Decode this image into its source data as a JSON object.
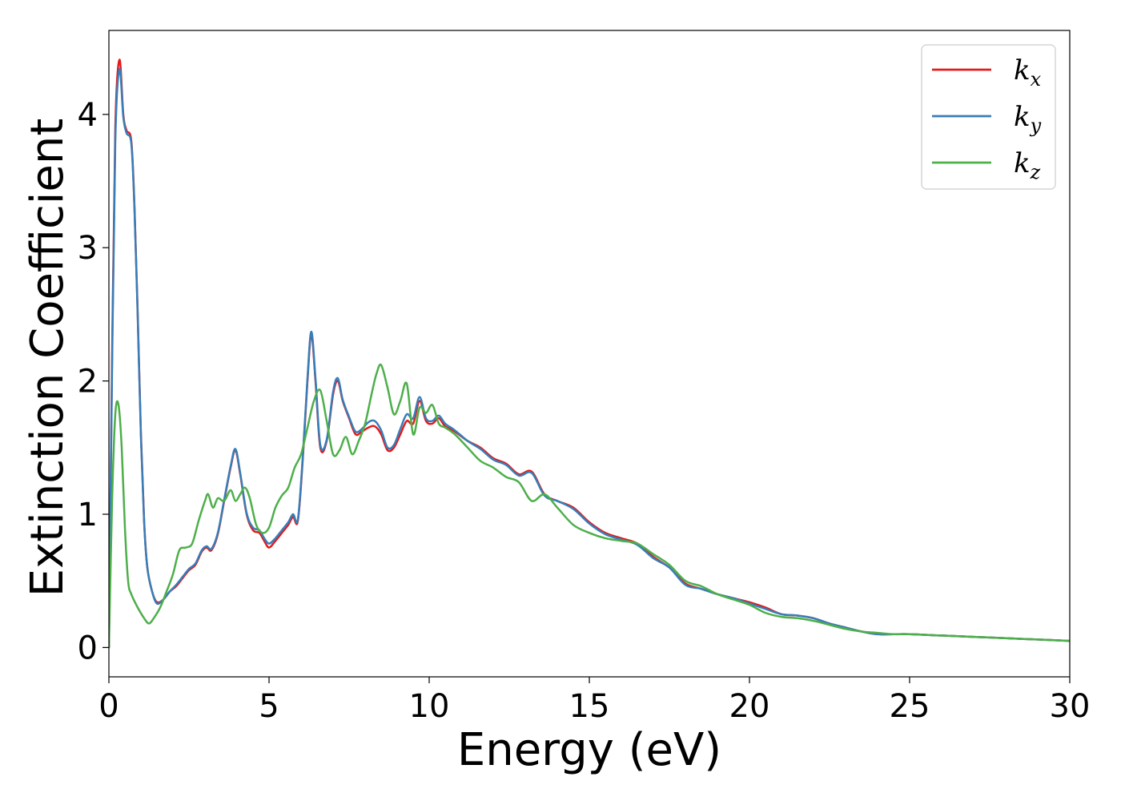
{
  "chart_data": {
    "type": "line",
    "title": "",
    "xlabel": "Energy (eV)",
    "ylabel": "Extinction Coefficient",
    "xlim": [
      0,
      30
    ],
    "ylim": [
      -0.22,
      4.63
    ],
    "xticks": [
      0,
      5,
      10,
      15,
      20,
      25,
      30
    ],
    "yticks": [
      0,
      1,
      2,
      3,
      4
    ],
    "grid": false,
    "legend": {
      "position": "top-right"
    },
    "series": [
      {
        "name": "k",
        "sub": "x",
        "color": "#e41a1c",
        "x": [
          0,
          0.1,
          0.2,
          0.33,
          0.45,
          0.55,
          0.7,
          0.8,
          0.9,
          1.0,
          1.1,
          1.2,
          1.35,
          1.5,
          1.7,
          1.9,
          2.1,
          2.3,
          2.5,
          2.7,
          2.9,
          3.05,
          3.2,
          3.4,
          3.6,
          3.8,
          3.95,
          4.1,
          4.3,
          4.5,
          4.7,
          4.85,
          5.0,
          5.2,
          5.4,
          5.6,
          5.75,
          5.9,
          6.05,
          6.2,
          6.32,
          6.45,
          6.6,
          6.8,
          7.0,
          7.15,
          7.3,
          7.5,
          7.7,
          7.9,
          8.1,
          8.3,
          8.5,
          8.7,
          8.9,
          9.1,
          9.3,
          9.5,
          9.7,
          9.9,
          10.1,
          10.3,
          10.5,
          10.8,
          11.2,
          11.6,
          12.0,
          12.4,
          12.8,
          13.2,
          13.6,
          14.0,
          14.5,
          15.0,
          15.5,
          16.0,
          16.5,
          17.0,
          17.5,
          18.0,
          18.5,
          19.0,
          19.5,
          20.0,
          20.5,
          21.0,
          21.5,
          22.0,
          22.5,
          23.0,
          23.5,
          24.0,
          24.5,
          25.0,
          26.0,
          27.0,
          28.0,
          29.0,
          30.0
        ],
        "y": [
          0.0,
          2.2,
          3.9,
          4.41,
          4.0,
          3.88,
          3.8,
          3.3,
          2.5,
          1.6,
          0.95,
          0.6,
          0.42,
          0.34,
          0.36,
          0.42,
          0.46,
          0.52,
          0.58,
          0.62,
          0.72,
          0.75,
          0.73,
          0.85,
          1.1,
          1.35,
          1.48,
          1.3,
          1.0,
          0.88,
          0.86,
          0.8,
          0.75,
          0.8,
          0.86,
          0.92,
          0.98,
          0.95,
          1.4,
          2.0,
          2.35,
          2.0,
          1.5,
          1.55,
          1.9,
          2.0,
          1.85,
          1.72,
          1.6,
          1.62,
          1.65,
          1.66,
          1.6,
          1.48,
          1.5,
          1.6,
          1.7,
          1.68,
          1.85,
          1.7,
          1.68,
          1.72,
          1.66,
          1.62,
          1.55,
          1.5,
          1.42,
          1.38,
          1.3,
          1.32,
          1.15,
          1.1,
          1.05,
          0.94,
          0.86,
          0.82,
          0.78,
          0.68,
          0.6,
          0.48,
          0.44,
          0.4,
          0.37,
          0.34,
          0.3,
          0.25,
          0.24,
          0.22,
          0.18,
          0.15,
          0.12,
          0.1,
          0.1,
          0.1,
          0.09,
          0.08,
          0.07,
          0.06,
          0.05
        ]
      },
      {
        "name": "k",
        "sub": "y",
        "color": "#377eb8",
        "x": [
          0,
          0.1,
          0.2,
          0.33,
          0.45,
          0.55,
          0.7,
          0.8,
          0.9,
          1.0,
          1.1,
          1.2,
          1.35,
          1.5,
          1.7,
          1.9,
          2.1,
          2.3,
          2.5,
          2.7,
          2.9,
          3.05,
          3.2,
          3.4,
          3.6,
          3.8,
          3.95,
          4.1,
          4.3,
          4.5,
          4.7,
          4.85,
          5.0,
          5.2,
          5.4,
          5.6,
          5.75,
          5.9,
          6.05,
          6.2,
          6.32,
          6.45,
          6.6,
          6.8,
          7.0,
          7.15,
          7.3,
          7.5,
          7.7,
          7.9,
          8.1,
          8.3,
          8.5,
          8.7,
          8.9,
          9.1,
          9.3,
          9.5,
          9.7,
          9.9,
          10.1,
          10.3,
          10.5,
          10.8,
          11.2,
          11.6,
          12.0,
          12.4,
          12.8,
          13.2,
          13.6,
          14.0,
          14.5,
          15.0,
          15.5,
          16.0,
          16.5,
          17.0,
          17.5,
          18.0,
          18.5,
          19.0,
          19.5,
          20.0,
          20.5,
          21.0,
          21.5,
          22.0,
          22.5,
          23.0,
          23.5,
          24.0,
          24.5,
          25.0,
          26.0,
          27.0,
          28.0,
          29.0,
          30.0
        ],
        "y": [
          0.0,
          2.1,
          3.8,
          4.34,
          3.98,
          3.86,
          3.78,
          3.28,
          2.48,
          1.58,
          0.94,
          0.6,
          0.42,
          0.33,
          0.36,
          0.42,
          0.47,
          0.53,
          0.59,
          0.63,
          0.73,
          0.76,
          0.74,
          0.86,
          1.11,
          1.36,
          1.49,
          1.31,
          1.01,
          0.9,
          0.88,
          0.82,
          0.78,
          0.82,
          0.88,
          0.94,
          1.0,
          0.96,
          1.42,
          2.02,
          2.37,
          2.02,
          1.52,
          1.56,
          1.92,
          2.02,
          1.86,
          1.73,
          1.62,
          1.64,
          1.69,
          1.7,
          1.63,
          1.5,
          1.52,
          1.64,
          1.75,
          1.72,
          1.88,
          1.72,
          1.7,
          1.74,
          1.68,
          1.63,
          1.55,
          1.49,
          1.41,
          1.37,
          1.29,
          1.31,
          1.14,
          1.1,
          1.04,
          0.93,
          0.85,
          0.81,
          0.77,
          0.67,
          0.6,
          0.47,
          0.44,
          0.4,
          0.37,
          0.33,
          0.29,
          0.25,
          0.24,
          0.22,
          0.18,
          0.15,
          0.12,
          0.1,
          0.1,
          0.1,
          0.09,
          0.08,
          0.07,
          0.06,
          0.05
        ]
      },
      {
        "name": "k",
        "sub": "z",
        "color": "#4daf4a",
        "x": [
          0,
          0.1,
          0.2,
          0.3,
          0.4,
          0.5,
          0.6,
          0.7,
          0.9,
          1.1,
          1.25,
          1.4,
          1.6,
          1.8,
          2.0,
          2.2,
          2.4,
          2.6,
          2.8,
          3.0,
          3.1,
          3.25,
          3.4,
          3.6,
          3.8,
          3.95,
          4.1,
          4.25,
          4.4,
          4.6,
          4.8,
          5.0,
          5.2,
          5.4,
          5.6,
          5.8,
          6.0,
          6.2,
          6.4,
          6.6,
          6.8,
          7.0,
          7.2,
          7.4,
          7.6,
          7.8,
          8.0,
          8.2,
          8.35,
          8.5,
          8.7,
          8.9,
          9.1,
          9.3,
          9.5,
          9.7,
          9.9,
          10.1,
          10.3,
          10.5,
          10.8,
          11.2,
          11.6,
          12.0,
          12.4,
          12.8,
          13.2,
          13.6,
          14.0,
          14.5,
          15.0,
          15.5,
          16.0,
          16.5,
          17.0,
          17.5,
          18.0,
          18.5,
          19.0,
          19.5,
          20.0,
          20.5,
          21.0,
          21.5,
          22.0,
          22.5,
          23.0,
          23.5,
          24.0,
          24.5,
          25.0,
          26.0,
          27.0,
          28.0,
          29.0,
          30.0
        ],
        "y": [
          0.0,
          1.1,
          1.75,
          1.82,
          1.5,
          0.9,
          0.5,
          0.4,
          0.3,
          0.22,
          0.18,
          0.22,
          0.3,
          0.42,
          0.55,
          0.73,
          0.75,
          0.78,
          0.95,
          1.1,
          1.15,
          1.05,
          1.12,
          1.1,
          1.18,
          1.1,
          1.15,
          1.2,
          1.12,
          0.92,
          0.86,
          0.9,
          1.05,
          1.14,
          1.2,
          1.35,
          1.45,
          1.65,
          1.85,
          1.93,
          1.7,
          1.45,
          1.48,
          1.58,
          1.45,
          1.55,
          1.68,
          1.9,
          2.05,
          2.12,
          1.95,
          1.75,
          1.85,
          1.98,
          1.6,
          1.8,
          1.76,
          1.82,
          1.68,
          1.65,
          1.6,
          1.5,
          1.4,
          1.35,
          1.28,
          1.24,
          1.1,
          1.15,
          1.05,
          0.92,
          0.86,
          0.82,
          0.8,
          0.78,
          0.7,
          0.62,
          0.5,
          0.46,
          0.4,
          0.36,
          0.32,
          0.26,
          0.23,
          0.22,
          0.2,
          0.17,
          0.14,
          0.12,
          0.11,
          0.1,
          0.1,
          0.09,
          0.08,
          0.07,
          0.06,
          0.05
        ]
      }
    ]
  }
}
